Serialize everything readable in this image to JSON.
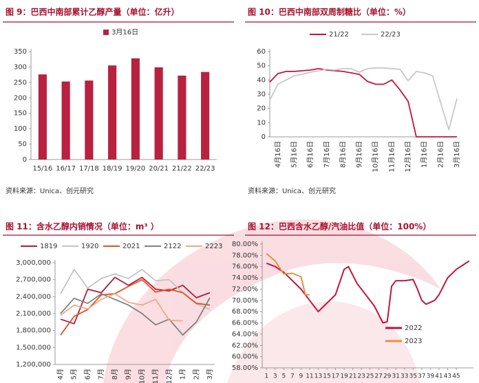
{
  "chart_data": [
    {
      "type": "bar",
      "title": "图 9：巴西中南部累计乙醇产量（单位：亿升）",
      "source": "资料来源：Unica、创元研究",
      "categories": [
        "15/16",
        "16/17",
        "17/18",
        "18/19",
        "19/20",
        "20/21",
        "21/22",
        "22/23"
      ],
      "series": [
        {
          "name": "3月16日",
          "color": "#b8213f",
          "values": [
            276,
            253,
            256,
            305,
            328,
            299,
            272,
            284
          ]
        }
      ],
      "ylim": [
        0,
        350
      ],
      "yticks": [
        0,
        50,
        100,
        150,
        200,
        250,
        300,
        350
      ],
      "legend": "top",
      "grid": false
    },
    {
      "type": "line",
      "title": "图 10：巴西中南部双周制糖比（单位：%）",
      "source": "资料来源：Unica、创元研究",
      "categories": [
        null,
        "4月16日",
        null,
        "5月16日",
        null,
        "6月16日",
        null,
        "7月16日",
        null,
        "8月16日",
        null,
        "9月16日",
        null,
        "10月16日",
        null,
        "11月16日",
        null,
        "12月16日",
        null,
        "1月16日",
        null,
        "2月16日",
        null,
        "3月16日"
      ],
      "series": [
        {
          "name": "21/22",
          "color": "#c0143c",
          "values": [
            38.5,
            44.5,
            46,
            46,
            46.5,
            47,
            48,
            47,
            46.5,
            46,
            45,
            44,
            39,
            37,
            37,
            40,
            33,
            25,
            0,
            0,
            0,
            0,
            0,
            0
          ]
        },
        {
          "name": "22/23",
          "color": "#c8c8c8",
          "values": [
            26,
            37,
            40,
            43,
            44,
            45.5,
            46.5,
            47.5,
            47,
            48,
            48,
            45.5,
            48,
            48.5,
            48.5,
            48,
            47.5,
            39.5,
            46,
            45,
            43,
            24,
            5,
            27
          ]
        }
      ],
      "ylim": [
        0,
        60
      ],
      "yticks": [
        0,
        10,
        20,
        30,
        40,
        50,
        60
      ],
      "legend": "top",
      "grid": false
    },
    {
      "type": "line",
      "title": "图 11：含水乙醇内销情况（单位：m³ ）",
      "categories": [
        "4月",
        "5月",
        "6月",
        "7月",
        "8月",
        "9月",
        "10月",
        "11月",
        "12月",
        "1月",
        "2月",
        "3月"
      ],
      "series": [
        {
          "name": "1819",
          "color": "#b5193a",
          "values": [
            2000000,
            1920000,
            2530000,
            2470000,
            2740000,
            2600000,
            2740000,
            2530000,
            2500000,
            2600000,
            2380000,
            2470000
          ]
        },
        {
          "name": "1920",
          "color": "#c4c4c4",
          "values": [
            2450000,
            2880000,
            2550000,
            2720000,
            2800000,
            2720000,
            2880000,
            2680000,
            2700000,
            2470000,
            2270000,
            2170000
          ]
        },
        {
          "name": "2021",
          "color": "#e0501e",
          "values": [
            1720000,
            2050000,
            2170000,
            2430000,
            2450000,
            2580000,
            2700000,
            2480000,
            2530000,
            2470000,
            2280000,
            2250000
          ]
        },
        {
          "name": "2122",
          "color": "#808080",
          "values": [
            2100000,
            2370000,
            2280000,
            2450000,
            2350000,
            2250000,
            2100000,
            1900000,
            2000000,
            1720000,
            1950000,
            2380000
          ]
        },
        {
          "name": "2223",
          "color": "#f4a58a",
          "values": [
            2070000,
            2250000,
            2180000,
            2350000,
            2450000,
            2300000,
            2250000,
            2350000,
            1980000,
            1970000,
            null,
            null
          ]
        }
      ],
      "ylim": [
        1200000,
        3000000
      ],
      "yticks": [
        {
          "value": 1200000,
          "label": "1,200,000"
        },
        {
          "value": 1500000,
          "label": "1,500,000"
        },
        {
          "value": 1800000,
          "label": "1,800,000"
        },
        {
          "value": 2100000,
          "label": "2,100,000"
        },
        {
          "value": 2400000,
          "label": "2,400,000"
        },
        {
          "value": 2700000,
          "label": "2,700,000"
        },
        {
          "value": 3000000,
          "label": "3,000,000"
        }
      ],
      "legend": "top",
      "grid": false
    },
    {
      "type": "line",
      "title": "图 12：巴西含水乙醇/汽油比值（单位：100%）",
      "series": [
        {
          "name": "2022",
          "color": "#c0143c",
          "x": [
            1,
            3,
            5,
            7,
            9,
            11,
            13,
            15,
            17,
            19,
            20,
            22,
            24,
            26,
            28,
            29,
            30,
            31,
            33,
            35,
            36,
            37,
            38,
            40,
            41,
            43,
            45,
            47,
            48
          ],
          "values": [
            76.6,
            76,
            75,
            73.5,
            72,
            70,
            68,
            69.5,
            71,
            75.5,
            76,
            73,
            71,
            69,
            66,
            66.2,
            72.5,
            73.5,
            73.5,
            73.7,
            72,
            70,
            69.3,
            70,
            71,
            74,
            75.5,
            76.5,
            77
          ]
        },
        {
          "name": "2023",
          "color": "#f08c3c",
          "x": [
            1,
            3,
            5,
            7,
            9,
            10,
            11
          ],
          "values": [
            78.3,
            77,
            74.7,
            74.8,
            74.2,
            71,
            71
          ]
        }
      ],
      "xlim": [
        0,
        49
      ],
      "xticks": [
        1,
        3,
        5,
        7,
        9,
        11,
        13,
        15,
        17,
        19,
        21,
        23,
        25,
        27,
        29,
        31,
        33,
        35,
        37,
        39,
        41,
        43,
        45
      ],
      "ylim": [
        58,
        80
      ],
      "yticks": [
        {
          "value": 58,
          "label": "58.00%"
        },
        {
          "value": 60,
          "label": "60.00%"
        },
        {
          "value": 62,
          "label": "62.00%"
        },
        {
          "value": 64,
          "label": "64.00%"
        },
        {
          "value": 66,
          "label": "66.00%"
        },
        {
          "value": 68,
          "label": "68.00%"
        },
        {
          "value": 70,
          "label": "70.00%"
        },
        {
          "value": 72,
          "label": "72.00%"
        },
        {
          "value": 74,
          "label": "74.00%"
        },
        {
          "value": 76,
          "label": "76.00%"
        },
        {
          "value": 78,
          "label": "78.00%"
        },
        {
          "value": 80,
          "label": "80.00%"
        }
      ],
      "legend": "lower right",
      "grid": false
    }
  ]
}
